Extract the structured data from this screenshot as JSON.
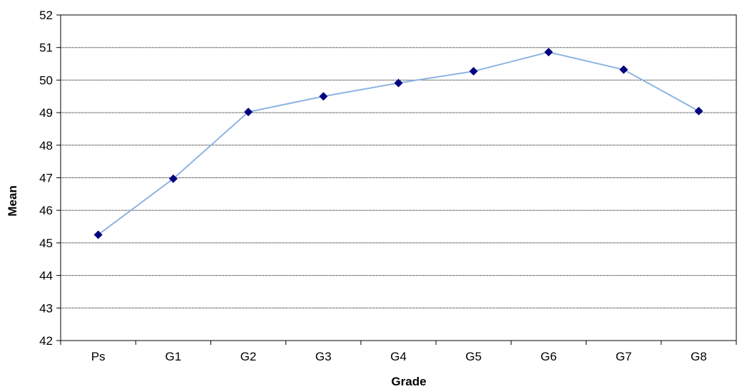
{
  "chart_data": {
    "type": "line",
    "title": "",
    "xlabel": "Grade",
    "ylabel": "Mean",
    "categories": [
      "Ps",
      "G1",
      "G2",
      "G3",
      "G4",
      "G5",
      "G6",
      "G7",
      "G8"
    ],
    "series": [
      {
        "values": [
          45.25,
          46.97,
          49.02,
          49.5,
          49.91,
          50.27,
          50.86,
          50.32,
          49.05
        ]
      }
    ],
    "ylim": [
      42,
      52
    ],
    "yticks": [
      42,
      43,
      44,
      45,
      46,
      47,
      48,
      49,
      50,
      51,
      52
    ],
    "grid": "horizontal-dotted",
    "legend": "none",
    "colors": {
      "line": "#8db4e2",
      "marker": "#000080",
      "grid": "#000000",
      "axis": "#000000"
    }
  }
}
